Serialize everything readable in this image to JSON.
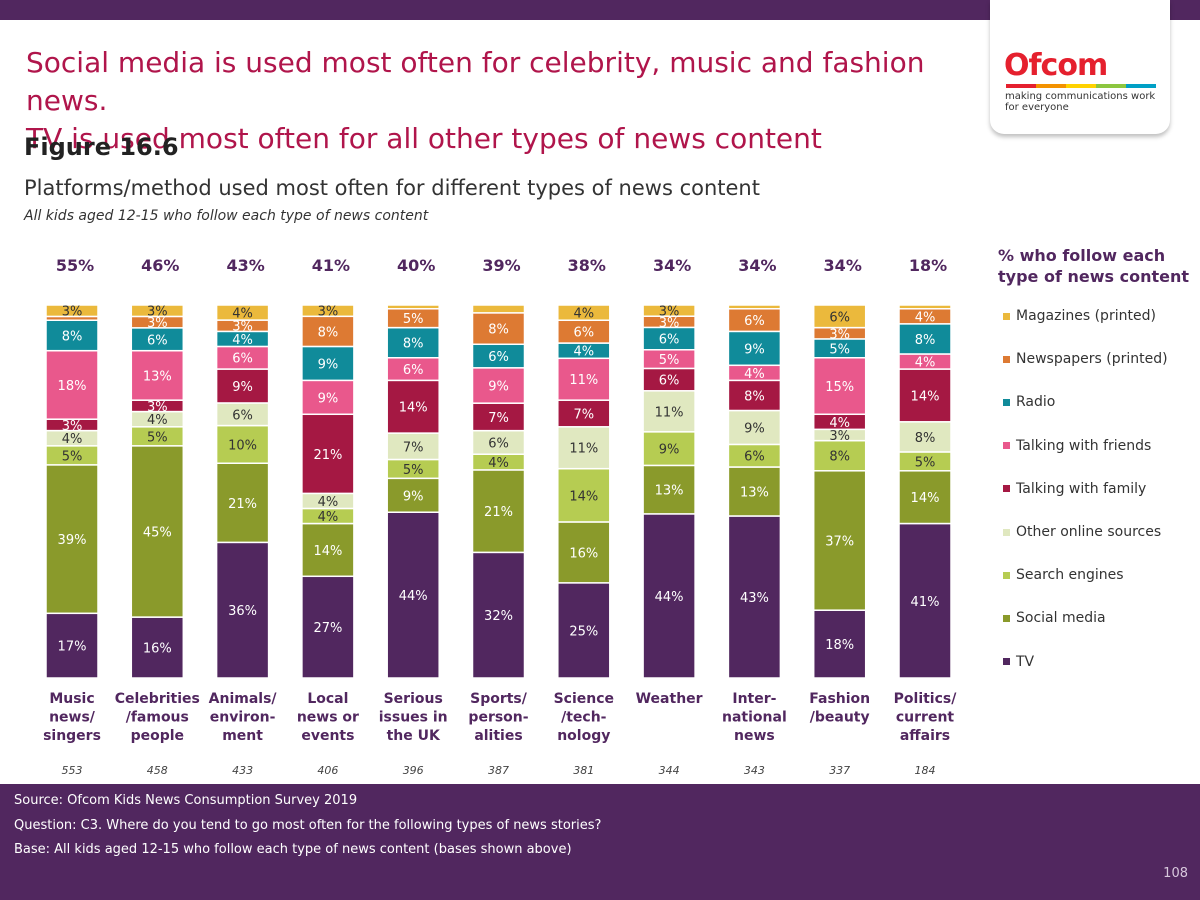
{
  "headline": {
    "line1": "Social media is used most often for celebrity, music and fashion news.",
    "line2": "TV is used most often for all other types of news content"
  },
  "figure_label": "Figure 16.6",
  "logo": {
    "word": "Ofcom",
    "tagline1": "making communications work",
    "tagline2": "for everyone"
  },
  "legend_title": "% who follow each type of news content",
  "footer": {
    "source": "Source: Ofcom Kids News Consumption Survey 2019",
    "question": "Question: C3. Where do you tend to go most often for the following types of news stories?",
    "base": "Base: All kids aged 12-15 who follow each type of news content (bases shown above)"
  },
  "page_number": "108",
  "chart_data": {
    "type": "bar",
    "stacked": true,
    "title": "Platforms/method used most often for different types of news content",
    "subtitle": "All kids aged 12-15 who follow each type of news content",
    "categories": [
      [
        "Music",
        "news/",
        "singers"
      ],
      [
        "Celebrities",
        "/famous",
        "people"
      ],
      [
        "Animals/",
        "environ-",
        "ment"
      ],
      [
        "Local",
        "news or",
        "events"
      ],
      [
        "Serious",
        "issues in",
        "the UK"
      ],
      [
        "Sports/",
        "person-",
        "alities"
      ],
      [
        "Science",
        "/tech-",
        "nology"
      ],
      [
        "Weather"
      ],
      [
        "Inter-",
        "national",
        "news"
      ],
      [
        "Fashion",
        "/beauty"
      ],
      [
        "Politics/",
        "current",
        "affairs"
      ]
    ],
    "follow_pct": [
      "55%",
      "46%",
      "43%",
      "41%",
      "40%",
      "39%",
      "38%",
      "34%",
      "34%",
      "34%",
      "18%"
    ],
    "bases": [
      "553",
      "458",
      "433",
      "406",
      "396",
      "387",
      "381",
      "344",
      "343",
      "337",
      "184"
    ],
    "series": [
      {
        "name": "TV",
        "color": "#51275f",
        "values": [
          17,
          16,
          36,
          27,
          44,
          32,
          25,
          44,
          43,
          18,
          41
        ]
      },
      {
        "name": "Social media",
        "color": "#8a9a2b",
        "values": [
          39,
          45,
          21,
          14,
          9,
          21,
          16,
          13,
          13,
          37,
          14
        ]
      },
      {
        "name": "Search engines",
        "color": "#b6cc52",
        "values": [
          5,
          5,
          10,
          4,
          5,
          4,
          14,
          9,
          6,
          8,
          5
        ]
      },
      {
        "name": "Other online sources",
        "color": "#e0e8c0",
        "values": [
          4,
          4,
          6,
          4,
          7,
          6,
          11,
          11,
          9,
          3,
          8
        ]
      },
      {
        "name": "Talking with family",
        "color": "#a51843",
        "values": [
          3,
          3,
          9,
          21,
          14,
          7,
          7,
          6,
          8,
          4,
          14
        ]
      },
      {
        "name": "Talking with friends",
        "color": "#e9588c",
        "values": [
          18,
          13,
          6,
          9,
          6,
          9,
          11,
          5,
          4,
          15,
          4
        ]
      },
      {
        "name": "Radio",
        "color": "#108b9a",
        "values": [
          8,
          6,
          4,
          9,
          8,
          6,
          4,
          6,
          9,
          5,
          8
        ]
      },
      {
        "name": "Newspapers (printed)",
        "color": "#dd7a33",
        "values": [
          1,
          3,
          3,
          8,
          5,
          8,
          6,
          3,
          6,
          3,
          4
        ]
      },
      {
        "name": "Magazines (printed)",
        "color": "#ebb93c",
        "values": [
          3,
          3,
          4,
          3,
          1,
          2,
          4,
          3,
          1,
          6,
          1
        ]
      }
    ],
    "data_labels": [
      [
        "17%",
        "39%",
        "5%",
        "4%",
        "3%",
        "18%",
        "8%",
        "",
        "3%"
      ],
      [
        "16%",
        "45%",
        "5%",
        "4%",
        "3%",
        "13%",
        "6%",
        "3%",
        "3%"
      ],
      [
        "36%",
        "21%",
        "10%",
        "6%",
        "9%",
        "6%",
        "4%",
        "3%",
        "4%"
      ],
      [
        "27%",
        "14%",
        "4%",
        "4%",
        "21%",
        "9%",
        "9%",
        "8%",
        "3%"
      ],
      [
        "44%",
        "9%",
        "5%",
        "7%",
        "14%",
        "6%",
        "8%",
        "5%",
        ""
      ],
      [
        "32%",
        "21%",
        "4%",
        "6%",
        "7%",
        "9%",
        "6%",
        "8%",
        ""
      ],
      [
        "25%",
        "16%",
        "14%",
        "11%",
        "7%",
        "11%",
        "4%",
        "6%",
        "4%"
      ],
      [
        "44%",
        "13%",
        "9%",
        "11%",
        "6%",
        "5%",
        "6%",
        "3%",
        "3%"
      ],
      [
        "43%",
        "13%",
        "6%",
        "9%",
        "8%",
        "4%",
        "9%",
        "6%",
        ""
      ],
      [
        "18%",
        "37%",
        "8%",
        "3%",
        "4%",
        "15%",
        "5%",
        "3%",
        "6%"
      ],
      [
        "41%",
        "14%",
        "5%",
        "8%",
        "14%",
        "4%",
        "8%",
        "4%",
        ""
      ]
    ],
    "legend_placement": "right",
    "grid": false
  }
}
